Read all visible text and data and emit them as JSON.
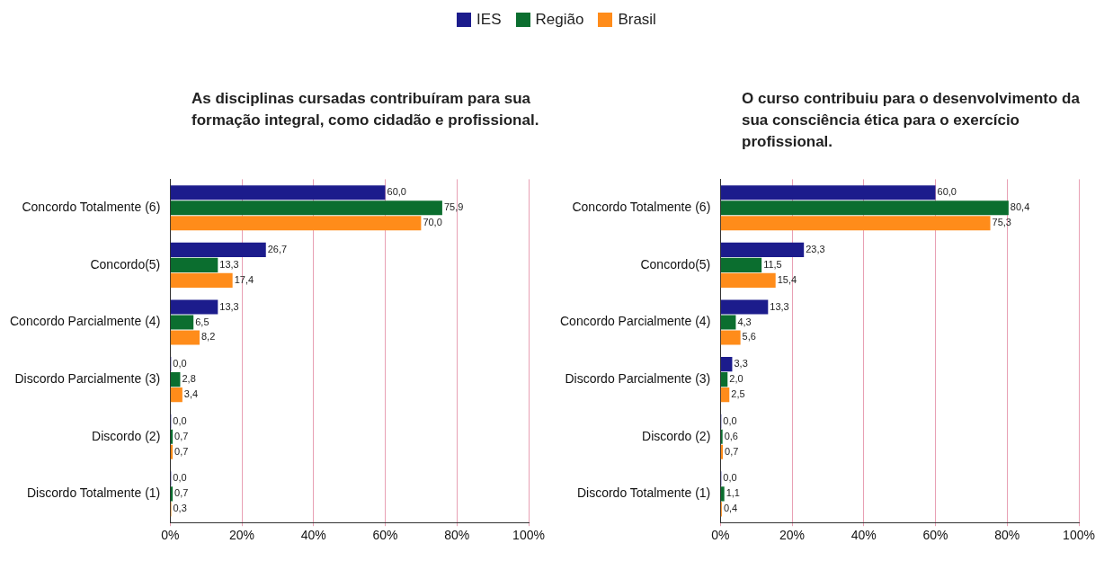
{
  "chart_data": [
    {
      "type": "bar",
      "orientation": "horizontal",
      "title": "As disciplinas cursadas contribuíram para sua formação integral, como cidadão e profissional.",
      "categories": [
        "Concordo Totalmente (6)",
        "Concordo(5)",
        "Concordo Parcialmente (4)",
        "Discordo Parcialmente (3)",
        "Discordo (2)",
        "Discordo Totalmente (1)"
      ],
      "series": [
        {
          "name": "IES",
          "color": "#1c1c8c",
          "values": [
            60.0,
            26.7,
            13.3,
            0.0,
            0.0,
            0.0
          ],
          "value_labels": [
            "60,0",
            "26,7",
            "13,3",
            "0,0",
            "0,0",
            "0,0"
          ]
        },
        {
          "name": "Região",
          "color": "#0b6e2f",
          "values": [
            75.9,
            13.3,
            6.5,
            2.8,
            0.7,
            0.7
          ],
          "value_labels": [
            "75,9",
            "13,3",
            "6,5",
            "2,8",
            "0,7",
            "0,7"
          ]
        },
        {
          "name": "Brasil",
          "color": "#ff8c1a",
          "values": [
            70.0,
            17.4,
            8.2,
            3.4,
            0.7,
            0.3
          ],
          "value_labels": [
            "70,0",
            "17,4",
            "8,2",
            "3,4",
            "0,7",
            "0,3"
          ]
        }
      ],
      "xlim": [
        0,
        100
      ],
      "xticks": [
        {
          "value": 0,
          "label": "0%"
        },
        {
          "value": 20,
          "label": "20%"
        },
        {
          "value": 40,
          "label": "40%"
        },
        {
          "value": 60,
          "label": "60%"
        },
        {
          "value": 80,
          "label": "80%"
        },
        {
          "value": 100,
          "label": "100%"
        }
      ],
      "grid": "x",
      "legend": "top"
    },
    {
      "type": "bar",
      "orientation": "horizontal",
      "title": "O curso contribuiu para o desenvolvimento da sua consciência ética para o exercício profissional.",
      "categories": [
        "Concordo Totalmente (6)",
        "Concordo(5)",
        "Concordo Parcialmente (4)",
        "Discordo Parcialmente (3)",
        "Discordo (2)",
        "Discordo Totalmente (1)"
      ],
      "series": [
        {
          "name": "IES",
          "color": "#1c1c8c",
          "values": [
            60.0,
            23.3,
            13.3,
            3.3,
            0.0,
            0.0
          ],
          "value_labels": [
            "60,0",
            "23,3",
            "13,3",
            "3,3",
            "0,0",
            "0,0"
          ]
        },
        {
          "name": "Região",
          "color": "#0b6e2f",
          "values": [
            80.4,
            11.5,
            4.3,
            2.0,
            0.6,
            1.1
          ],
          "value_labels": [
            "80,4",
            "11,5",
            "4,3",
            "2,0",
            "0,6",
            "1,1"
          ]
        },
        {
          "name": "Brasil",
          "color": "#ff8c1a",
          "values": [
            75.3,
            15.4,
            5.6,
            2.5,
            0.7,
            0.4
          ],
          "value_labels": [
            "75,3",
            "15,4",
            "5,6",
            "2,5",
            "0,7",
            "0,4"
          ]
        }
      ],
      "xlim": [
        0,
        100
      ],
      "xticks": [
        {
          "value": 0,
          "label": "0%"
        },
        {
          "value": 20,
          "label": "20%"
        },
        {
          "value": 40,
          "label": "40%"
        },
        {
          "value": 60,
          "label": "60%"
        },
        {
          "value": 80,
          "label": "80%"
        },
        {
          "value": 100,
          "label": "100%"
        }
      ],
      "grid": "x",
      "legend": "top"
    }
  ]
}
